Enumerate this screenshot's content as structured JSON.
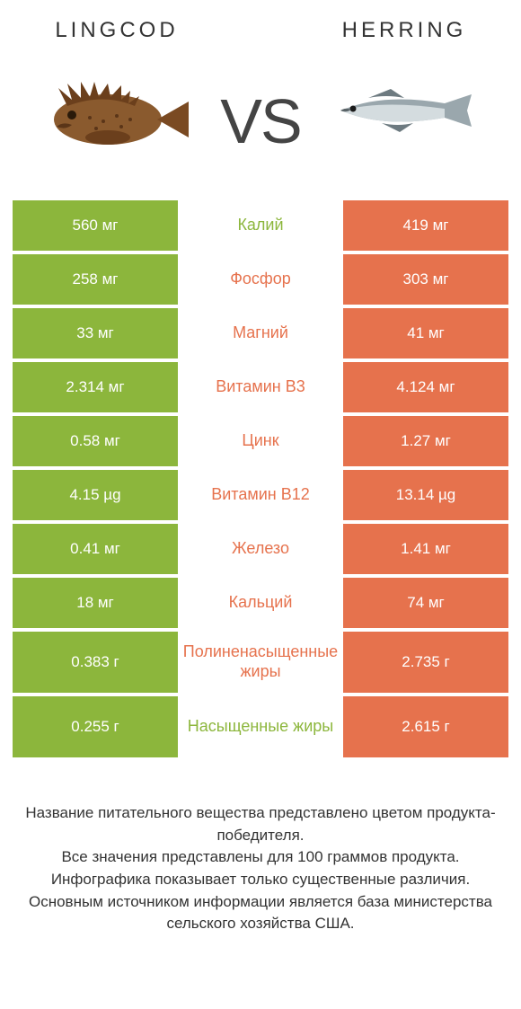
{
  "colors": {
    "left": "#8cb63c",
    "right": "#e6724d",
    "nutrient_left_win": "#8cb63c",
    "nutrient_right_win": "#e6724d"
  },
  "left_product": {
    "title": "Lingcod"
  },
  "right_product": {
    "title": "Herring"
  },
  "vs_label": "VS",
  "rows": [
    {
      "nutrient": "Калий",
      "left": "560 мг",
      "right": "419 мг",
      "winner": "left",
      "tall": false
    },
    {
      "nutrient": "Фосфор",
      "left": "258 мг",
      "right": "303 мг",
      "winner": "right",
      "tall": false
    },
    {
      "nutrient": "Магний",
      "left": "33 мг",
      "right": "41 мг",
      "winner": "right",
      "tall": false
    },
    {
      "nutrient": "Витамин B3",
      "left": "2.314 мг",
      "right": "4.124 мг",
      "winner": "right",
      "tall": false
    },
    {
      "nutrient": "Цинк",
      "left": "0.58 мг",
      "right": "1.27 мг",
      "winner": "right",
      "tall": false
    },
    {
      "nutrient": "Витамин B12",
      "left": "4.15 µg",
      "right": "13.14 µg",
      "winner": "right",
      "tall": false
    },
    {
      "nutrient": "Железо",
      "left": "0.41 мг",
      "right": "1.41 мг",
      "winner": "right",
      "tall": false
    },
    {
      "nutrient": "Кальций",
      "left": "18 мг",
      "right": "74 мг",
      "winner": "right",
      "tall": false
    },
    {
      "nutrient": "Полиненасыщенные жиры",
      "left": "0.383 г",
      "right": "2.735 г",
      "winner": "right",
      "tall": true
    },
    {
      "nutrient": "Насыщенные жиры",
      "left": "0.255 г",
      "right": "2.615 г",
      "winner": "left",
      "tall": true
    }
  ],
  "footer_lines": [
    "Название питательного вещества представлено цветом продукта-победителя.",
    "Все значения представлены для 100 граммов продукта.",
    "Инфографика показывает только существенные различия.",
    "Основным источником информации является база министерства сельского хозяйства США."
  ]
}
